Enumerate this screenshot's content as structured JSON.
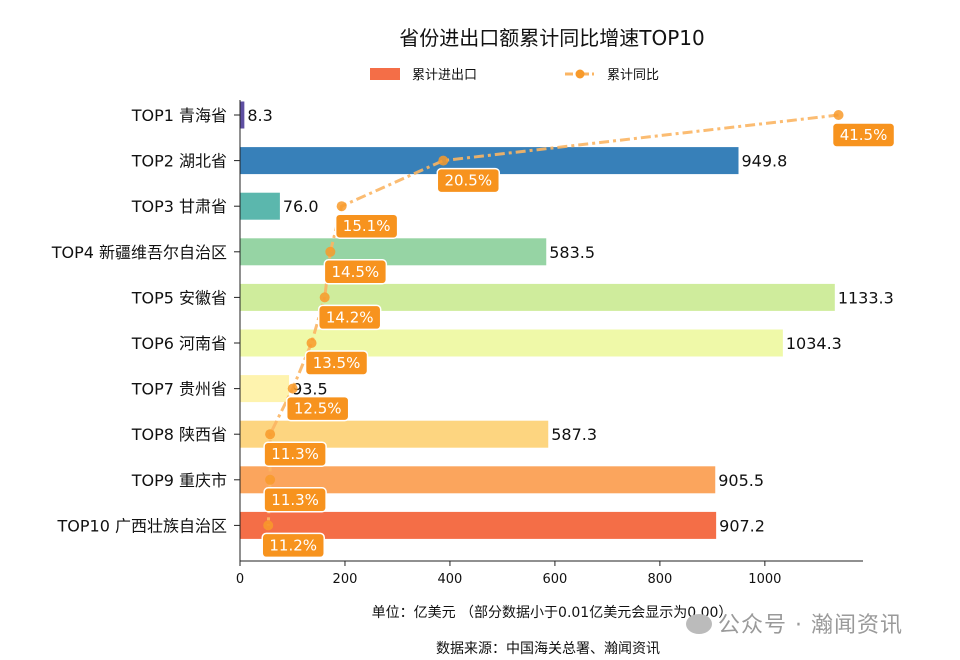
{
  "chart_data": {
    "type": "bar",
    "orientation": "horizontal",
    "title": "省份进出口额累计同比增速TOP10",
    "categories": [
      "TOP1 青海省",
      "TOP2 湖北省",
      "TOP3 甘肃省",
      "TOP4 新疆维吾尔自治区",
      "TOP5 安徽省",
      "TOP6 河南省",
      "TOP7 贵州省",
      "TOP8 陕西省",
      "TOP9 重庆市",
      "TOP10 广西壮族自治区"
    ],
    "series": [
      {
        "name": "累计进出口",
        "type": "bar",
        "values": [
          8.3,
          949.8,
          76.0,
          583.5,
          1133.3,
          1034.3,
          93.5,
          587.3,
          905.5,
          907.2
        ],
        "labels": [
          "8.3",
          "949.8",
          "76.0",
          "583.5",
          "1133.3",
          "1034.3",
          "93.5",
          "587.3",
          "905.5",
          "907.2"
        ],
        "colors": [
          "#5e4fa2",
          "#3780b9",
          "#5bb7ad",
          "#96d4a4",
          "#cfec9c",
          "#eff9a8",
          "#fef3ae",
          "#fdd580",
          "#fba55d",
          "#f46e47"
        ]
      },
      {
        "name": "累计同比",
        "type": "line",
        "unit": "%",
        "values": [
          41.5,
          20.5,
          15.1,
          14.5,
          14.2,
          13.5,
          12.5,
          11.3,
          11.3,
          11.2
        ],
        "labels": [
          "41.5%",
          "20.5%",
          "15.1%",
          "14.5%",
          "14.2%",
          "13.5%",
          "12.5%",
          "11.3%",
          "11.3%",
          "11.2%"
        ],
        "color": "#fbb563",
        "marker_color": "#f89a2a",
        "label_bg": "#f7931e"
      }
    ],
    "xlim": [
      0,
      1187
    ],
    "line_axis_range": [
      9.7,
      42.8
    ],
    "xticks": [
      0,
      200,
      400,
      600,
      800,
      1000
    ],
    "xlabel": "单位：亿美元  （部分数据小于0.01亿美元会显示为0.00）",
    "source": "数据来源：中国海关总署、瀚闻资讯",
    "legend_position": "top-center",
    "grid": false
  },
  "watermark": "公众号 · 瀚闻资讯"
}
